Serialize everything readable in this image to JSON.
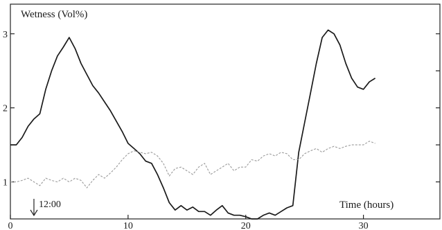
{
  "chart_data": {
    "type": "line",
    "ylabel": "Wetness (Vol%)",
    "xlabel": "Time (hours)",
    "xlim": [
      0,
      36.5
    ],
    "ylim": [
      0.5,
      3.4
    ],
    "x_ticks": [
      0,
      10,
      20,
      30
    ],
    "y_ticks": [
      1,
      2,
      3
    ],
    "grid": false,
    "annotation": {
      "label": "12:00",
      "x": 2,
      "arrow": "down"
    },
    "series": [
      {
        "style": "solid",
        "color": "#1a1a1a",
        "x": [
          0,
          0.5,
          1,
          1.5,
          2,
          2.5,
          3,
          3.5,
          4,
          4.5,
          5,
          5.5,
          6,
          6.5,
          7,
          7.5,
          8,
          8.5,
          9,
          9.5,
          10,
          10.5,
          11,
          11.5,
          12,
          12.5,
          13,
          13.5,
          14,
          14.5,
          15,
          15.5,
          16,
          16.5,
          17,
          17.5,
          18,
          18.5,
          19,
          19.5,
          20,
          20.5,
          21,
          21.5,
          22,
          22.5,
          23,
          23.5,
          24,
          24.5,
          25,
          25.5,
          26,
          26.5,
          27,
          27.5,
          28,
          28.5,
          29,
          29.5,
          30,
          30.5,
          31
        ],
        "values": [
          1.5,
          1.5,
          1.6,
          1.75,
          1.85,
          1.92,
          2.25,
          2.5,
          2.7,
          2.82,
          2.95,
          2.8,
          2.6,
          2.45,
          2.3,
          2.2,
          2.08,
          1.96,
          1.82,
          1.68,
          1.52,
          1.45,
          1.38,
          1.28,
          1.25,
          1.1,
          0.92,
          0.72,
          0.62,
          0.68,
          0.62,
          0.66,
          0.6,
          0.6,
          0.55,
          0.62,
          0.68,
          0.58,
          0.55,
          0.55,
          0.53,
          0.5,
          0.5,
          0.55,
          0.58,
          0.55,
          0.6,
          0.65,
          0.68,
          1.4,
          1.8,
          2.2,
          2.6,
          2.95,
          3.05,
          3.0,
          2.85,
          2.6,
          2.4,
          2.28,
          2.25,
          2.35,
          2.4
        ]
      },
      {
        "style": "dashed",
        "color": "#9a9a9a",
        "x": [
          0,
          0.5,
          1,
          1.5,
          2,
          2.5,
          3,
          3.5,
          4,
          4.5,
          5,
          5.5,
          6,
          6.5,
          7,
          7.5,
          8,
          8.5,
          9,
          9.5,
          10,
          10.5,
          11,
          11.5,
          12,
          12.5,
          13,
          13.5,
          14,
          14.5,
          15,
          15.5,
          16,
          16.5,
          17,
          17.5,
          18,
          18.5,
          19,
          19.5,
          20,
          20.5,
          21,
          21.5,
          22,
          22.5,
          23,
          23.5,
          24,
          24.5,
          25,
          25.5,
          26,
          26.5,
          27,
          27.5,
          28,
          28.5,
          29,
          29.5,
          30,
          30.5,
          31
        ],
        "values": [
          1.0,
          1.0,
          1.02,
          1.05,
          1.0,
          0.95,
          1.05,
          1.02,
          1.0,
          1.05,
          1.0,
          1.05,
          1.02,
          0.92,
          1.02,
          1.1,
          1.05,
          1.12,
          1.2,
          1.3,
          1.38,
          1.42,
          1.4,
          1.38,
          1.4,
          1.35,
          1.25,
          1.08,
          1.18,
          1.2,
          1.15,
          1.1,
          1.2,
          1.25,
          1.1,
          1.15,
          1.2,
          1.25,
          1.15,
          1.2,
          1.2,
          1.3,
          1.28,
          1.35,
          1.38,
          1.35,
          1.4,
          1.38,
          1.3,
          1.3,
          1.38,
          1.42,
          1.45,
          1.4,
          1.45,
          1.48,
          1.45,
          1.48,
          1.5,
          1.5,
          1.5,
          1.55,
          1.52
        ]
      }
    ]
  }
}
